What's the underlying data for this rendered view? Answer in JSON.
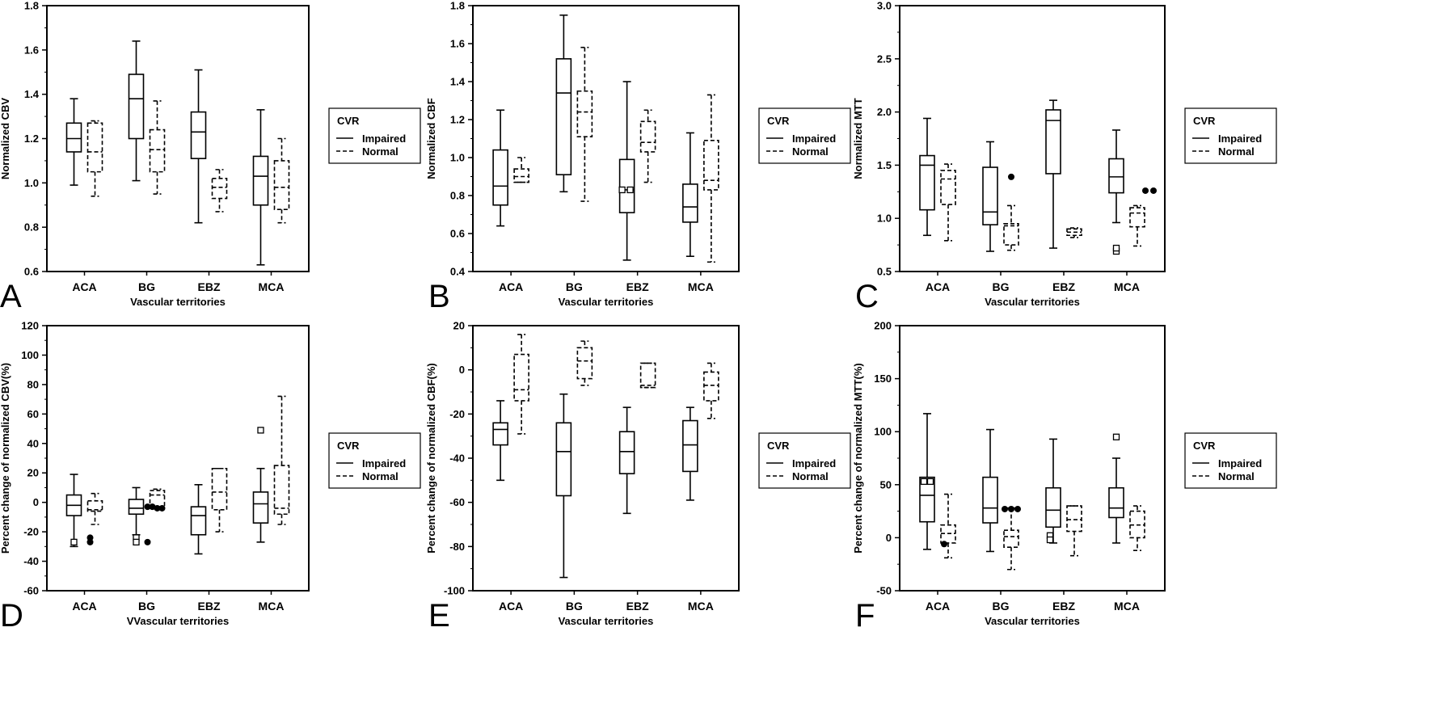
{
  "legend": {
    "title": "CVR",
    "impaired": "Impaired",
    "normal": "Normal"
  },
  "colors": {
    "ink": "#000000",
    "background": "#ffffff"
  },
  "chart_data": [
    {
      "panel": "A",
      "type": "box",
      "ylabel": "Normalized CBV",
      "xlabel": "Vascular territories",
      "ylim": [
        0.6,
        1.8
      ],
      "yticks": [
        0.6,
        0.8,
        1.0,
        1.2,
        1.4,
        1.6,
        1.8
      ],
      "tick_format": "1",
      "categories": [
        "ACA",
        "BG",
        "EBZ",
        "MCA"
      ],
      "series": [
        {
          "name": "Impaired",
          "style": "solid",
          "boxes": [
            {
              "min": 0.99,
              "q1": 1.14,
              "median": 1.2,
              "q3": 1.27,
              "max": 1.38,
              "outliers": []
            },
            {
              "min": 1.01,
              "q1": 1.2,
              "median": 1.38,
              "q3": 1.49,
              "max": 1.64,
              "outliers": []
            },
            {
              "min": 0.82,
              "q1": 1.11,
              "median": 1.23,
              "q3": 1.32,
              "max": 1.51,
              "outliers": []
            },
            {
              "min": 0.63,
              "q1": 0.9,
              "median": 1.03,
              "q3": 1.12,
              "max": 1.33,
              "outliers": []
            }
          ]
        },
        {
          "name": "Normal",
          "style": "dashed",
          "boxes": [
            {
              "min": 0.94,
              "q1": 1.05,
              "median": 1.14,
              "q3": 1.27,
              "max": 1.28,
              "outliers": []
            },
            {
              "min": 0.95,
              "q1": 1.05,
              "median": 1.15,
              "q3": 1.24,
              "max": 1.37,
              "outliers": []
            },
            {
              "min": 0.87,
              "q1": 0.93,
              "median": 0.98,
              "q3": 1.02,
              "max": 1.06,
              "outliers": []
            },
            {
              "min": 0.82,
              "q1": 0.88,
              "median": 0.98,
              "q3": 1.1,
              "max": 1.2,
              "outliers": []
            }
          ]
        }
      ]
    },
    {
      "panel": "B",
      "type": "box",
      "ylabel": "Normalized CBF",
      "xlabel": "Vascular territories",
      "ylim": [
        0.4,
        1.8
      ],
      "yticks": [
        0.4,
        0.6,
        0.8,
        1.0,
        1.2,
        1.4,
        1.6,
        1.8
      ],
      "tick_format": "1",
      "categories": [
        "ACA",
        "BG",
        "EBZ",
        "MCA"
      ],
      "series": [
        {
          "name": "Impaired",
          "style": "solid",
          "boxes": [
            {
              "min": 0.64,
              "q1": 0.75,
              "median": 0.85,
              "q3": 1.04,
              "max": 1.25,
              "outliers": []
            },
            {
              "min": 0.82,
              "q1": 0.91,
              "median": 1.34,
              "q3": 1.52,
              "max": 1.75,
              "outliers": []
            },
            {
              "min": 0.46,
              "q1": 0.71,
              "median": 0.83,
              "q3": 0.99,
              "max": 1.4,
              "outliers": [
                {
                  "value": 0.83,
                  "symbol": "square",
                  "dx": -6
                },
                {
                  "value": 0.83,
                  "symbol": "square",
                  "dx": 4
                }
              ]
            },
            {
              "min": 0.48,
              "q1": 0.66,
              "median": 0.74,
              "q3": 0.86,
              "max": 1.13,
              "outliers": []
            }
          ]
        },
        {
          "name": "Normal",
          "style": "dashed",
          "boxes": [
            {
              "min": 0.87,
              "q1": 0.87,
              "median": 0.9,
              "q3": 0.94,
              "max": 1.0,
              "outliers": []
            },
            {
              "min": 0.77,
              "q1": 1.11,
              "median": 1.24,
              "q3": 1.35,
              "max": 1.58,
              "outliers": []
            },
            {
              "min": 0.87,
              "q1": 1.03,
              "median": 1.08,
              "q3": 1.19,
              "max": 1.25,
              "outliers": []
            },
            {
              "min": 0.45,
              "q1": 0.83,
              "median": 0.88,
              "q3": 1.09,
              "max": 1.33,
              "outliers": []
            }
          ]
        }
      ]
    },
    {
      "panel": "C",
      "type": "box",
      "ylabel": "Normalized MTT",
      "xlabel": "Vascular territories",
      "ylim": [
        0.5,
        3.0
      ],
      "yticks": [
        0.5,
        1.0,
        1.5,
        2.0,
        2.5,
        3.0
      ],
      "tick_format": "1",
      "categories": [
        "ACA",
        "BG",
        "EBZ",
        "MCA"
      ],
      "series": [
        {
          "name": "Impaired",
          "style": "solid",
          "boxes": [
            {
              "min": 0.84,
              "q1": 1.08,
              "median": 1.5,
              "q3": 1.59,
              "max": 1.94,
              "outliers": []
            },
            {
              "min": 0.69,
              "q1": 0.94,
              "median": 1.06,
              "q3": 1.48,
              "max": 1.72,
              "outliers": []
            },
            {
              "min": 0.72,
              "q1": 1.42,
              "median": 1.92,
              "q3": 2.02,
              "max": 2.11,
              "outliers": []
            },
            {
              "min": 0.96,
              "q1": 1.24,
              "median": 1.39,
              "q3": 1.56,
              "max": 1.83,
              "outliers": [
                {
                  "value": 0.69,
                  "symbol": "square",
                  "dx": 0
                },
                {
                  "value": 0.72,
                  "symbol": "square",
                  "dx": 0
                }
              ]
            }
          ]
        },
        {
          "name": "Normal",
          "style": "dashed",
          "boxes": [
            {
              "min": 0.79,
              "q1": 1.13,
              "median": 1.37,
              "q3": 1.45,
              "max": 1.51,
              "outliers": []
            },
            {
              "min": 0.7,
              "q1": 0.75,
              "median": 0.93,
              "q3": 0.95,
              "max": 1.12,
              "outliers": [
                {
                  "value": 1.39,
                  "symbol": "dot",
                  "dx": 0
                }
              ]
            },
            {
              "min": 0.82,
              "q1": 0.84,
              "median": 0.87,
              "q3": 0.9,
              "max": 0.91,
              "outliers": []
            },
            {
              "min": 0.74,
              "q1": 0.92,
              "median": 1.05,
              "q3": 1.1,
              "max": 1.12,
              "outliers": [
                {
                  "value": 1.26,
                  "symbol": "dot",
                  "dx": 10
                },
                {
                  "value": 1.26,
                  "symbol": "dot",
                  "dx": 20
                }
              ]
            }
          ]
        }
      ]
    },
    {
      "panel": "D",
      "type": "box",
      "ylabel": "Percent change of normalized CBV(%)",
      "xlabel": "VVascular territories",
      "ylim": [
        -60,
        120
      ],
      "yticks": [
        -60,
        -40,
        -20,
        0,
        20,
        40,
        60,
        80,
        100,
        120
      ],
      "tick_format": "0",
      "categories": [
        "ACA",
        "BG",
        "EBZ",
        "MCA"
      ],
      "series": [
        {
          "name": "Impaired",
          "style": "solid",
          "boxes": [
            {
              "min": -30,
              "q1": -9,
              "median": -2,
              "q3": 5,
              "max": 19,
              "outliers": [
                {
                  "value": -27,
                  "symbol": "square",
                  "dx": 0
                }
              ]
            },
            {
              "min": -22,
              "q1": -8,
              "median": -4,
              "q3": 2,
              "max": 10,
              "outliers": [
                {
                  "value": -24,
                  "symbol": "square",
                  "dx": 0
                },
                {
                  "value": -27,
                  "symbol": "square",
                  "dx": 0
                }
              ]
            },
            {
              "min": -35,
              "q1": -22,
              "median": -9,
              "q3": -3,
              "max": 12,
              "outliers": []
            },
            {
              "min": -27,
              "q1": -14,
              "median": -1,
              "q3": 7,
              "max": 23,
              "outliers": [
                {
                  "value": 49,
                  "symbol": "square",
                  "dx": 0
                }
              ]
            }
          ]
        },
        {
          "name": "Normal",
          "style": "dashed",
          "boxes": [
            {
              "min": -15,
              "q1": -6,
              "median": -5,
              "q3": 1,
              "max": 6,
              "outliers": [
                {
                  "value": -24,
                  "symbol": "dot",
                  "dx": -6
                },
                {
                  "value": -27,
                  "symbol": "dot",
                  "dx": -6
                }
              ]
            },
            {
              "min": -4,
              "q1": -4,
              "median": 5,
              "q3": 8,
              "max": 9,
              "outliers": [
                {
                  "value": -3,
                  "symbol": "dot",
                  "dx": -12
                },
                {
                  "value": -3,
                  "symbol": "dot",
                  "dx": -6
                },
                {
                  "value": -4,
                  "symbol": "dot",
                  "dx": 0
                },
                {
                  "value": -4,
                  "symbol": "dot",
                  "dx": 6
                },
                {
                  "value": -27,
                  "symbol": "dot",
                  "dx": -12
                }
              ]
            },
            {
              "min": -20,
              "q1": -5,
              "median": 7,
              "q3": 23,
              "max": 23,
              "outliers": []
            },
            {
              "min": -15,
              "q1": -8,
              "median": -4,
              "q3": 25,
              "max": 72,
              "outliers": []
            }
          ]
        }
      ]
    },
    {
      "panel": "E",
      "type": "box",
      "ylabel": "Percent change of normalized CBF(%)",
      "xlabel": "Vascular territories",
      "ylim": [
        -100,
        20
      ],
      "yticks": [
        -100,
        -80,
        -60,
        -40,
        -20,
        0,
        20
      ],
      "tick_format": "0",
      "categories": [
        "ACA",
        "BG",
        "EBZ",
        "MCA"
      ],
      "series": [
        {
          "name": "Impaired",
          "style": "solid",
          "boxes": [
            {
              "min": -50,
              "q1": -34,
              "median": -27,
              "q3": -24,
              "max": -14,
              "outliers": []
            },
            {
              "min": -94,
              "q1": -57,
              "median": -37,
              "q3": -24,
              "max": -11,
              "outliers": []
            },
            {
              "min": -65,
              "q1": -47,
              "median": -37,
              "q3": -28,
              "max": -17,
              "outliers": []
            },
            {
              "min": -59,
              "q1": -46,
              "median": -34,
              "q3": -23,
              "max": -17,
              "outliers": []
            }
          ]
        },
        {
          "name": "Normal",
          "style": "dashed",
          "boxes": [
            {
              "min": -29,
              "q1": -14,
              "median": -9,
              "q3": 7,
              "max": 16,
              "outliers": []
            },
            {
              "min": -7,
              "q1": -4,
              "median": 4,
              "q3": 10,
              "max": 13,
              "outliers": []
            },
            {
              "min": -8,
              "q1": -8,
              "median": -7,
              "q3": 3,
              "max": 3,
              "outliers": []
            },
            {
              "min": -22,
              "q1": -14,
              "median": -7,
              "q3": -1,
              "max": 3,
              "outliers": []
            }
          ]
        }
      ]
    },
    {
      "panel": "F",
      "type": "box",
      "ylabel": "Percent change of normalized MTT(%)",
      "xlabel": "Vascular territories",
      "ylim": [
        -50,
        200
      ],
      "yticks": [
        -50,
        0,
        50,
        100,
        150,
        200
      ],
      "tick_format": "0",
      "categories": [
        "ACA",
        "BG",
        "EBZ",
        "MCA"
      ],
      "series": [
        {
          "name": "Impaired",
          "style": "solid",
          "boxes": [
            {
              "min": -11,
              "q1": 15,
              "median": 40,
              "q3": 57,
              "max": 117,
              "outliers": [
                {
                  "value": 53,
                  "symbol": "square",
                  "dx": -4
                },
                {
                  "value": 53,
                  "symbol": "square",
                  "dx": 4
                }
              ]
            },
            {
              "min": -13,
              "q1": 14,
              "median": 28,
              "q3": 57,
              "max": 102,
              "outliers": []
            },
            {
              "min": -5,
              "q1": 10,
              "median": 26,
              "q3": 47,
              "max": 93,
              "outliers": [
                {
                  "value": 2,
                  "symbol": "square",
                  "dx": -4
                },
                {
                  "value": -2,
                  "symbol": "square",
                  "dx": -4
                }
              ]
            },
            {
              "min": -5,
              "q1": 19,
              "median": 28,
              "q3": 47,
              "max": 75,
              "outliers": [
                {
                  "value": 95,
                  "symbol": "square",
                  "dx": 0
                }
              ]
            }
          ]
        },
        {
          "name": "Normal",
          "style": "dashed",
          "boxes": [
            {
              "min": -19,
              "q1": -5,
              "median": 4,
              "q3": 12,
              "max": 41,
              "outliers": [
                {
                  "value": -6,
                  "symbol": "dot",
                  "dx": -5
                }
              ]
            },
            {
              "min": -30,
              "q1": -9,
              "median": 1,
              "q3": 7,
              "max": 28,
              "outliers": [
                {
                  "value": 27,
                  "symbol": "dot",
                  "dx": -8
                },
                {
                  "value": 27,
                  "symbol": "dot",
                  "dx": 0
                },
                {
                  "value": 27,
                  "symbol": "dot",
                  "dx": 8
                }
              ]
            },
            {
              "min": -17,
              "q1": 6,
              "median": 17,
              "q3": 30,
              "max": 30,
              "outliers": []
            },
            {
              "min": -12,
              "q1": 0,
              "median": 12,
              "q3": 25,
              "max": 30,
              "outliers": []
            }
          ]
        }
      ]
    }
  ]
}
